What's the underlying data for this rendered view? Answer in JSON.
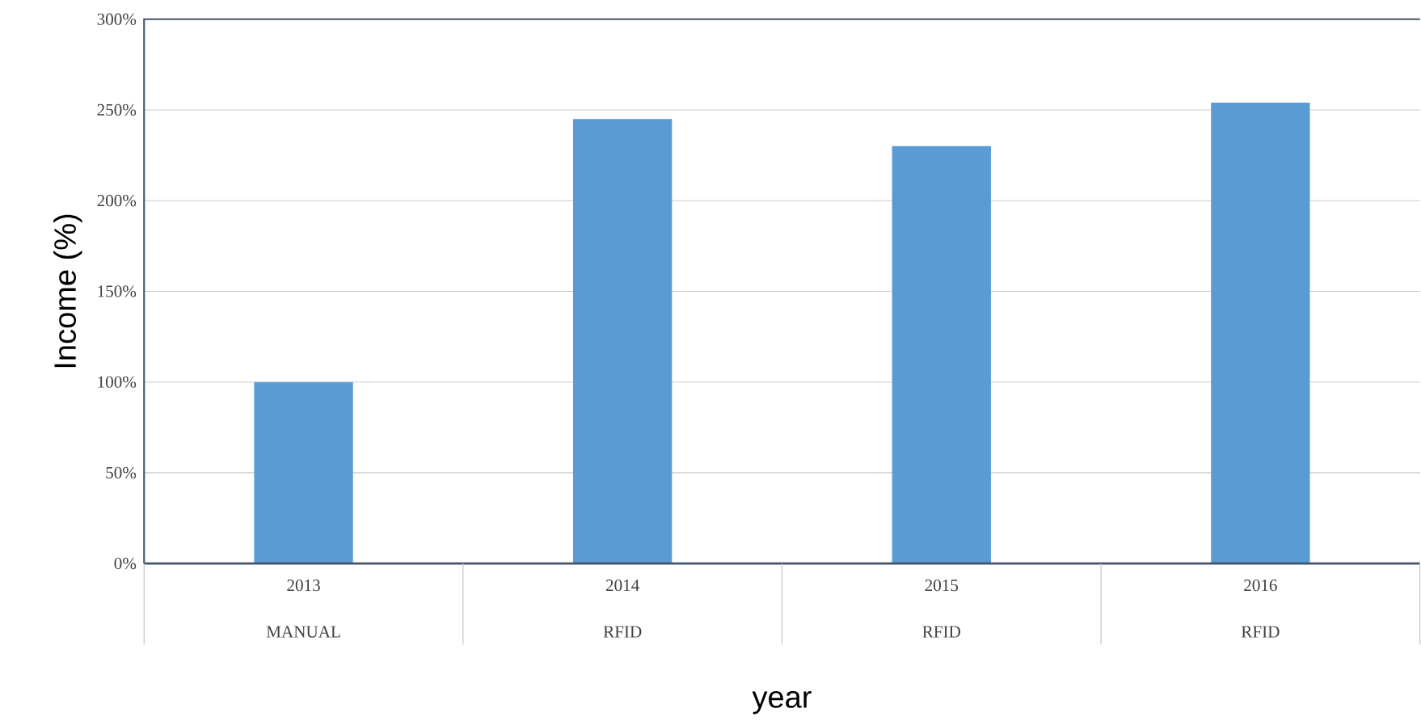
{
  "chart_data": {
    "type": "bar",
    "xlabel": "year",
    "ylabel": "Income (%)",
    "categories": [
      "2013",
      "2014",
      "2015",
      "2016"
    ],
    "values": [
      100,
      245,
      230,
      254
    ],
    "color": "#5b9bd5",
    "ylim": [
      0,
      300
    ],
    "yticks": [
      {
        "value": 0,
        "label": "0%"
      },
      {
        "value": 50,
        "label": "50%"
      },
      {
        "value": 100,
        "label": "100%"
      },
      {
        "value": 150,
        "label": "150%"
      },
      {
        "value": 200,
        "label": "200%"
      },
      {
        "value": 250,
        "label": "250%"
      },
      {
        "value": 300,
        "label": "300%"
      }
    ],
    "grid": "y",
    "annotations": [
      "MANUAL",
      "RFID",
      "RFID",
      "RFID"
    ]
  }
}
